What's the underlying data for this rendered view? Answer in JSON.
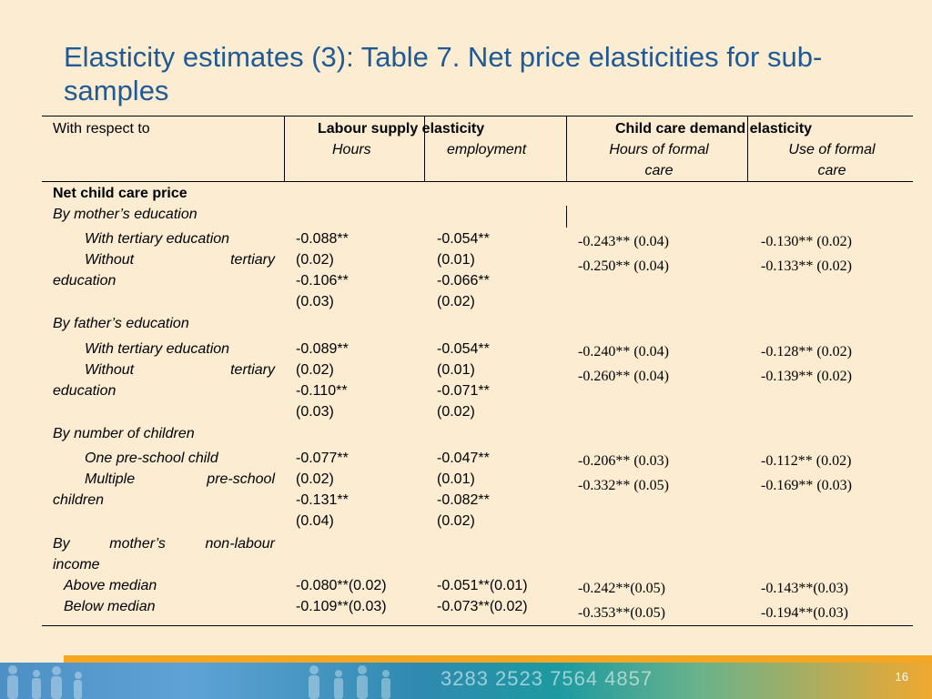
{
  "title": "Elasticity estimates (3): Table 7. Net price elasticities for sub-samples",
  "table": {
    "col_with_respect_to": "With respect to",
    "group_labour": "Labour supply  elasticity",
    "group_childcare": "Child care demand elasticity",
    "sub_hours": "Hours",
    "sub_employment": "employment",
    "sub_hours_formal_1": "Hours of formal",
    "sub_hours_formal_2": "care",
    "sub_use_formal_1": "Use of formal",
    "sub_use_formal_2": "care",
    "net_price_label": "Net child care price",
    "groups": [
      {
        "heading": "By mother’s education",
        "row1": "With tertiary education",
        "row2a": "Without tertiary",
        "row2b": "education",
        "hours": [
          "-0.088**",
          "(0.02)",
          "-0.106**",
          "(0.03)"
        ],
        "employment": [
          "-0.054**",
          "(0.01)",
          "-0.066**",
          "(0.02)"
        ],
        "hours_formal": [
          "-0.243** (0.04)",
          "-0.250** (0.04)"
        ],
        "use_formal": [
          "-0.130** (0.02)",
          "-0.133** (0.02)"
        ]
      },
      {
        "heading": "By father’s education",
        "row1": "With tertiary education",
        "row2a": "Without tertiary",
        "row2b": "education",
        "hours": [
          "-0.089**",
          "(0.02)",
          "-0.110**",
          "(0.03)"
        ],
        "employment": [
          "-0.054**",
          "(0.01)",
          "-0.071**",
          "(0.02)"
        ],
        "hours_formal": [
          "-0.240** (0.04)",
          "-0.260** (0.04)"
        ],
        "use_formal": [
          "-0.128** (0.02)",
          "-0.139** (0.02)"
        ]
      },
      {
        "heading": "By number of children",
        "row1": "One pre-school child",
        "row2a": "Multiple pre-school",
        "row2b": "children",
        "hours": [
          "-0.077**",
          "(0.02)",
          "-0.131**",
          "(0.04)"
        ],
        "employment": [
          "-0.047**",
          "(0.01)",
          "-0.082**",
          "(0.02)"
        ],
        "hours_formal": [
          "-0.206** (0.03)",
          "-0.332** (0.05)"
        ],
        "use_formal": [
          "-0.112** (0.02)",
          "-0.169** (0.03)"
        ]
      }
    ],
    "income": {
      "heading_a": "By mother’s non-labour",
      "heading_b": "income",
      "row1": "Above median",
      "row2": "Below median",
      "hours": [
        "-0.080**(0.02)",
        "-0.109**(0.03)"
      ],
      "employment": [
        "-0.051**(0.01)",
        "-0.073**(0.02)"
      ],
      "hours_formal": [
        "-0.242**(0.05)",
        "-0.353**(0.05)"
      ],
      "use_formal": [
        "-0.143**(0.03)",
        "-0.194**(0.03)"
      ]
    }
  },
  "footer": {
    "numbers": "3283  2523  7564  4857",
    "page_number": "16"
  }
}
